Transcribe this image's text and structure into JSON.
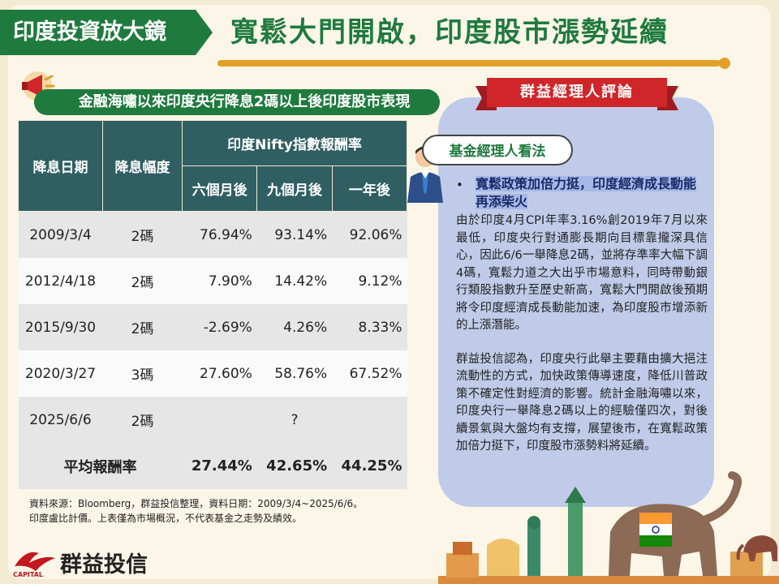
{
  "header": {
    "tag": "印度投資放大鏡",
    "title": "寬鬆大門開啟，印度股市漲勢延續"
  },
  "table": {
    "title": "金融海嘯以來印度央行降息2碼以上後印度股市表現",
    "col_date": "降息日期",
    "col_cut": "降息幅度",
    "col_group": "印度Nifty指數報酬率",
    "col_6m": "六個月後",
    "col_9m": "九個月後",
    "col_1y": "一年後",
    "rows": [
      {
        "date": "2009/3/4",
        "cut": "2碼",
        "m6": "76.94%",
        "m9": "93.14%",
        "y1": "92.06%"
      },
      {
        "date": "2012/4/18",
        "cut": "2碼",
        "m6": "7.90%",
        "m9": "14.42%",
        "y1": "9.12%"
      },
      {
        "date": "2015/9/30",
        "cut": "2碼",
        "m6": "-2.69%",
        "m9": "4.26%",
        "y1": "8.33%"
      },
      {
        "date": "2020/3/27",
        "cut": "3碼",
        "m6": "27.60%",
        "m9": "58.76%",
        "y1": "67.52%"
      }
    ],
    "pending": {
      "date": "2025/6/6",
      "cut": "2碼",
      "value": "?"
    },
    "average": {
      "label": "平均報酬率",
      "m6": "27.44%",
      "m9": "42.65%",
      "y1": "44.25%"
    }
  },
  "notes": {
    "line1": "資料來源：Bloomberg，群益投信整理，資料日期：2009/3/4~2025/6/6。",
    "line2": "印度盧比計價。上表僅為市場概況，不代表基金之走勢及績效。"
  },
  "logo": {
    "name": "群益投信",
    "sub": "CAPITAL"
  },
  "panel": {
    "ribbon": "群益經理人評論",
    "bubble": "基金經理人看法",
    "bullet": "•",
    "headline": "寬鬆政策加倍力挺，印度經濟成長動能再添柴火",
    "para1": "由於印度4月CPI年率3.16%創2019年7月以來最低，印度央行對通膨長期向目標靠攏深具信心，因此6/6一舉降息2碼，並將存準率大幅下調4碼，寬鬆力道之大出乎市場意料，同時帶動銀行類股指數升至歷史新高，寬鬆大門開啟後預期將令印度經濟成長動能加速，為印度股市增添新的上漲潛能。",
    "para2": "群益投信認為，印度央行此舉主要藉由擴大挹注流動性的方式，加快政策傳導速度，降低川普政策不確定性對經濟的影響。統計金融海嘯以來，印度央行一舉降息2碼以上的經驗僅四次，對後續景氣與大盤均有支撐，展望後市，在寬鬆政策加倍力挺下，印度股市漲勢料將延續。"
  },
  "colors": {
    "green": "#1f7a3e",
    "teal_header": "#2f5f63",
    "gold": "#e2a02a",
    "ribbon_red": "#d0262a",
    "panel_blue": "#bfcbe8"
  },
  "icons": [
    "megaphone-icon",
    "manager-avatar",
    "capital-logo-icon",
    "elephant-illustration",
    "india-landmarks-illustration"
  ]
}
